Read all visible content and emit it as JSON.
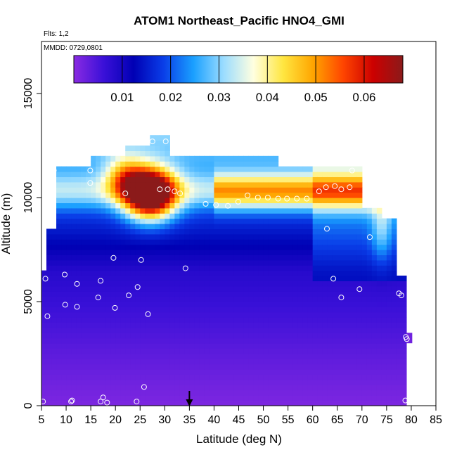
{
  "chart_data": {
    "type": "heatmap",
    "title": "ATOM1 Northeast_Pacific HNO4_GMI",
    "flights_label": "Flts: 1,2",
    "dates_label": "MMDD: 0729,0801",
    "xlabel": "Latitude (deg N)",
    "ylabel": "Altitude (m)",
    "xlim": [
      5,
      85
    ],
    "ylim": [
      0,
      17500
    ],
    "x_ticks": [
      5,
      10,
      15,
      20,
      25,
      30,
      35,
      40,
      45,
      50,
      55,
      60,
      65,
      70,
      75,
      80,
      85
    ],
    "y_ticks": [
      0,
      5000,
      10000,
      15000
    ],
    "colorbar": {
      "min": 0.0,
      "max": 0.068,
      "tick_values": [
        0.01,
        0.02,
        0.03,
        0.04,
        0.05,
        0.06
      ],
      "tick_labels": [
        "0.01",
        "0.02",
        "0.03",
        "0.04",
        "0.05",
        "0.06"
      ],
      "colors": [
        "#8a2be2",
        "#3a10d8",
        "#0000b4",
        "#0a3ee8",
        "#1aa0ff",
        "#9adcff",
        "#ffffe0",
        "#ffe640",
        "#ffa500",
        "#ff4500",
        "#cc0000",
        "#8b1a1a"
      ]
    },
    "arrow_latitude": 35,
    "observations": [
      {
        "lat": 5.3,
        "alt": 200
      },
      {
        "lat": 11.0,
        "alt": 200
      },
      {
        "lat": 11.2,
        "alt": 250
      },
      {
        "lat": 17.0,
        "alt": 200
      },
      {
        "lat": 17.5,
        "alt": 400
      },
      {
        "lat": 18.3,
        "alt": 150
      },
      {
        "lat": 24.3,
        "alt": 200
      },
      {
        "lat": 25.8,
        "alt": 900
      },
      {
        "lat": 78.8,
        "alt": 250
      },
      {
        "lat": 5.8,
        "alt": 6100
      },
      {
        "lat": 6.2,
        "alt": 4300
      },
      {
        "lat": 9.7,
        "alt": 6300
      },
      {
        "lat": 9.8,
        "alt": 4850
      },
      {
        "lat": 12.2,
        "alt": 5850
      },
      {
        "lat": 12.2,
        "alt": 4750
      },
      {
        "lat": 16.5,
        "alt": 5200
      },
      {
        "lat": 17.0,
        "alt": 6000
      },
      {
        "lat": 19.9,
        "alt": 4700
      },
      {
        "lat": 22.7,
        "alt": 5300
      },
      {
        "lat": 24.5,
        "alt": 5700
      },
      {
        "lat": 26.6,
        "alt": 4400
      },
      {
        "lat": 19.6,
        "alt": 7100
      },
      {
        "lat": 25.2,
        "alt": 7000
      },
      {
        "lat": 34.2,
        "alt": 6600
      },
      {
        "lat": 64.2,
        "alt": 6100
      },
      {
        "lat": 65.8,
        "alt": 5200
      },
      {
        "lat": 69.5,
        "alt": 5600
      },
      {
        "lat": 77.5,
        "alt": 5400
      },
      {
        "lat": 78.0,
        "alt": 5300
      },
      {
        "lat": 78.9,
        "alt": 3300
      },
      {
        "lat": 79.1,
        "alt": 3200
      },
      {
        "lat": 7.5,
        "alt": 11300
      },
      {
        "lat": 7.1,
        "alt": 10600
      },
      {
        "lat": 14.9,
        "alt": 11300
      },
      {
        "lat": 14.9,
        "alt": 10700
      },
      {
        "lat": 22.0,
        "alt": 10200
      },
      {
        "lat": 27.5,
        "alt": 12700
      },
      {
        "lat": 30.2,
        "alt": 12700
      },
      {
        "lat": 29.0,
        "alt": 10400
      },
      {
        "lat": 30.6,
        "alt": 10400
      },
      {
        "lat": 32.0,
        "alt": 10300
      },
      {
        "lat": 33.1,
        "alt": 10200
      },
      {
        "lat": 38.3,
        "alt": 9700
      },
      {
        "lat": 40.4,
        "alt": 9650
      },
      {
        "lat": 42.8,
        "alt": 9600
      },
      {
        "lat": 44.9,
        "alt": 9800
      },
      {
        "lat": 46.8,
        "alt": 10100
      },
      {
        "lat": 48.9,
        "alt": 10000
      },
      {
        "lat": 50.9,
        "alt": 10000
      },
      {
        "lat": 53.0,
        "alt": 9950
      },
      {
        "lat": 54.8,
        "alt": 9950
      },
      {
        "lat": 56.8,
        "alt": 9950
      },
      {
        "lat": 58.8,
        "alt": 9950
      },
      {
        "lat": 61.3,
        "alt": 10300
      },
      {
        "lat": 62.7,
        "alt": 10500
      },
      {
        "lat": 64.5,
        "alt": 10550
      },
      {
        "lat": 65.8,
        "alt": 10400
      },
      {
        "lat": 67.5,
        "alt": 10500
      },
      {
        "lat": 68.0,
        "alt": 11300
      },
      {
        "lat": 62.9,
        "alt": 8500
      },
      {
        "lat": 71.6,
        "alt": 8100
      }
    ]
  }
}
